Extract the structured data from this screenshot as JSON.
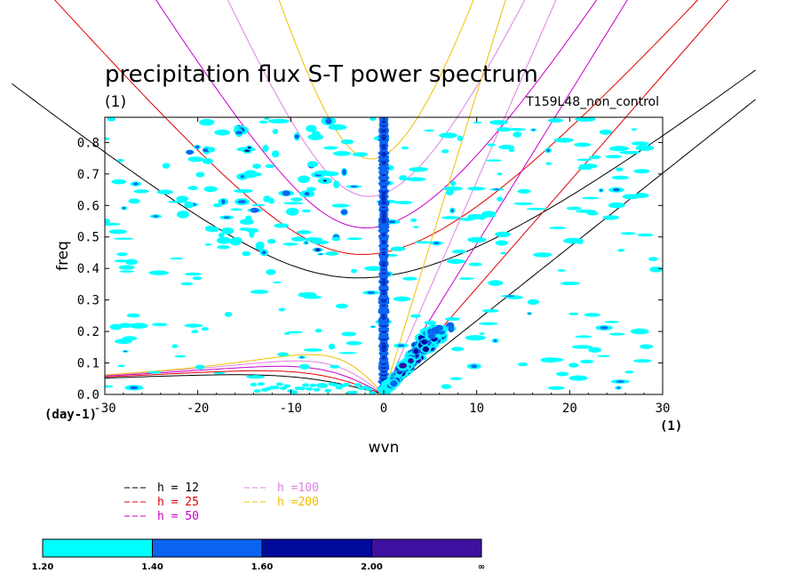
{
  "chart_data": {
    "type": "contour",
    "title": "precipitation flux S-T power spectrum",
    "subtitle_left": "(1)",
    "subtitle_right": "T159L48_non_control",
    "xlabel": "wvn",
    "ylabel": "freq",
    "x_unit": "(1)",
    "y_unit": "(day-1)",
    "xlim": [
      -30,
      30
    ],
    "ylim": [
      0,
      0.88
    ],
    "x_ticks": [
      -30,
      -20,
      -10,
      0,
      10,
      20,
      30
    ],
    "x_tick_labels": [
      "-30",
      "-20",
      "-10",
      "0",
      "10",
      "20",
      "30"
    ],
    "y_ticks": [
      0,
      0.1,
      0.2,
      0.3,
      0.4,
      0.5,
      0.6,
      0.7,
      0.8
    ],
    "y_tick_labels": [
      "0.0",
      "0.1",
      "0.2",
      "0.3",
      "0.4",
      "0.5",
      "0.6",
      "0.7",
      "0.8"
    ],
    "dispersion_curves": [
      {
        "name": "h = 12",
        "h": 12,
        "color": "#000000"
      },
      {
        "name": "h = 25",
        "h": 25,
        "color": "#e00000"
      },
      {
        "name": "h = 50",
        "h": 50,
        "color": "#c800c8"
      },
      {
        "name": "h =100",
        "h": 100,
        "color": "#e080e0"
      },
      {
        "name": "h =200",
        "h": 200,
        "color": "#f0c000"
      }
    ],
    "contour_levels": {
      "labels": [
        "1.20",
        "1.40",
        "1.60",
        "2.00",
        "∞"
      ],
      "colors": [
        "#00ffff",
        "#0a64f0",
        "#000a9a",
        "#4010a0"
      ]
    }
  }
}
